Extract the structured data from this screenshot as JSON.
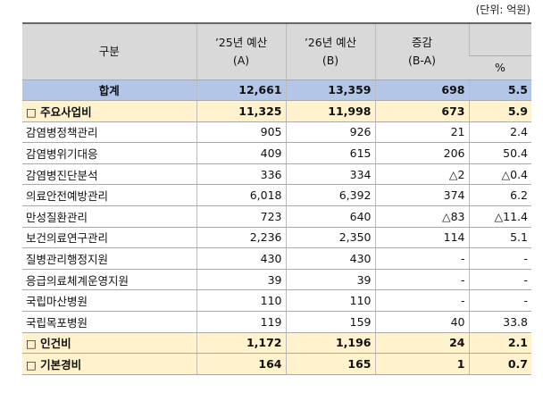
{
  "unit": "(단위: 억원)",
  "header": {
    "col0": "구분",
    "col1": [
      "’25년 예산",
      "(A)"
    ],
    "col2": [
      "’26년 예산",
      "(B)"
    ],
    "col3": [
      "증감",
      "(B-A)"
    ],
    "col4": "%"
  },
  "rows": [
    [
      "합계",
      "12,661",
      "13,359",
      "698",
      "5.5"
    ],
    [
      "□ 주요사업비",
      "11,325",
      "11,998",
      "673",
      "5.9"
    ],
    [
      "감염병정책관리",
      "905",
      "926",
      "21",
      "2.4"
    ],
    [
      "감염병위기대응",
      "409",
      "615",
      "206",
      "50.4"
    ],
    [
      "감염병진단분석",
      "336",
      "334",
      "△2",
      "△0.4"
    ],
    [
      "의료안전예방관리",
      "6,018",
      "6,392",
      "374",
      "6.2"
    ],
    [
      "만성질환관리",
      "723",
      "640",
      "△83",
      "△11.4"
    ],
    [
      "보건의료연구관리",
      "2,236",
      "2,350",
      "114",
      "5.1"
    ],
    [
      "질병관리행정지원",
      "430",
      "430",
      "-",
      "-"
    ],
    [
      "응급의료체계운영지원",
      "39",
      "39",
      "-",
      "-"
    ],
    [
      "국립마산병원",
      "110",
      "110",
      "-",
      "-"
    ],
    [
      "국립목포병원",
      "119",
      "159",
      "40",
      "33.8"
    ],
    [
      "□ 인건비",
      "1,172",
      "1,196",
      "24",
      "2.1"
    ],
    [
      "□ 기본경비",
      "164",
      "165",
      "1",
      "0.7"
    ]
  ]
}
